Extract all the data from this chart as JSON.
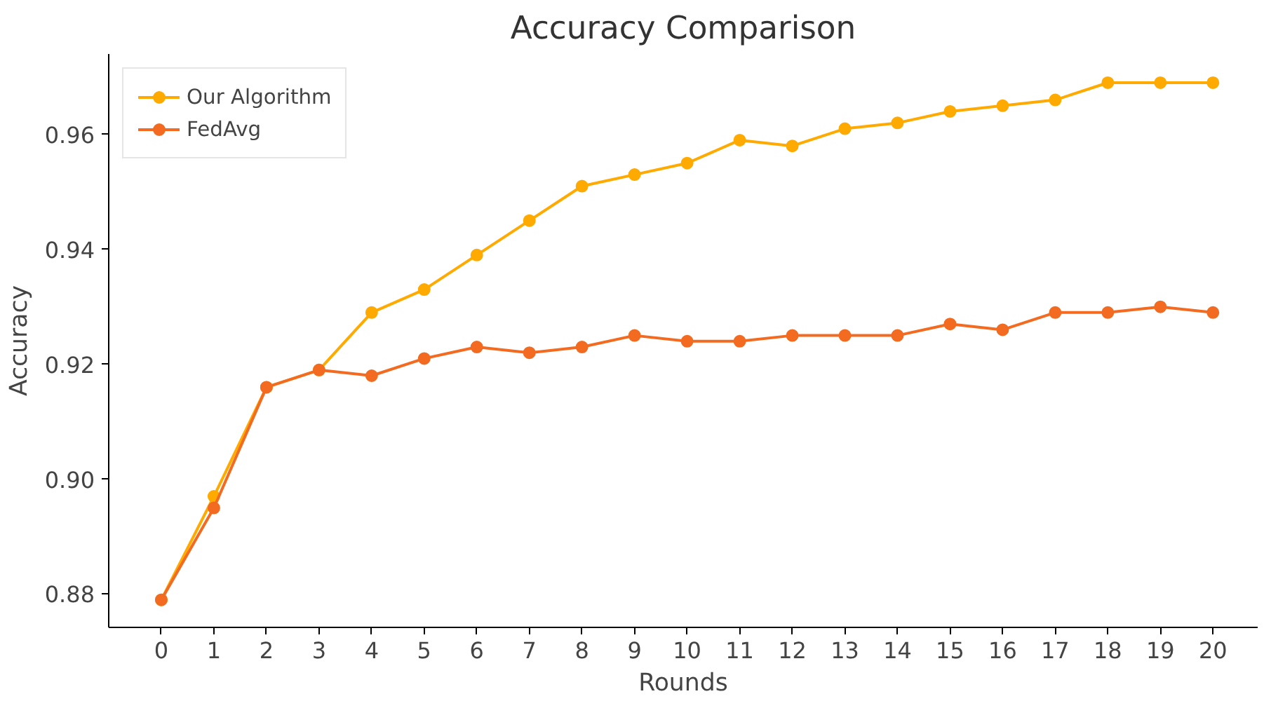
{
  "chart_data": {
    "type": "line",
    "title": "Accuracy Comparison",
    "xlabel": "Rounds",
    "ylabel": "Accuracy",
    "x": [
      0,
      1,
      2,
      3,
      4,
      5,
      6,
      7,
      8,
      9,
      10,
      11,
      12,
      13,
      14,
      15,
      16,
      17,
      18,
      19,
      20
    ],
    "series": [
      {
        "name": "Our Algorithm",
        "color": "#ffaa00",
        "values": [
          0.879,
          0.897,
          0.916,
          0.919,
          0.929,
          0.933,
          0.939,
          0.945,
          0.951,
          0.953,
          0.955,
          0.959,
          0.958,
          0.961,
          0.962,
          0.964,
          0.965,
          0.966,
          0.969,
          0.969,
          0.969
        ]
      },
      {
        "name": "FedAvg",
        "color": "#f26b21",
        "values": [
          0.879,
          0.895,
          0.916,
          0.919,
          0.918,
          0.921,
          0.923,
          0.922,
          0.923,
          0.925,
          0.924,
          0.924,
          0.925,
          0.925,
          0.925,
          0.927,
          0.926,
          0.929,
          0.929,
          0.93,
          0.929
        ]
      }
    ],
    "xlim": [
      -1,
      20.85
    ],
    "ylim": [
      0.8742,
      0.974
    ],
    "xticks": [
      0,
      1,
      2,
      3,
      4,
      5,
      6,
      7,
      8,
      9,
      10,
      11,
      12,
      13,
      14,
      15,
      16,
      17,
      18,
      19,
      20
    ],
    "yticks": [
      {
        "value": 0.88,
        "label": "0.88"
      },
      {
        "value": 0.9,
        "label": "0.90"
      },
      {
        "value": 0.92,
        "label": "0.92"
      },
      {
        "value": 0.94,
        "label": "0.94"
      },
      {
        "value": 0.96,
        "label": "0.96"
      }
    ],
    "marker": "circle",
    "line_style": "solid",
    "grid": false,
    "legend": "top left"
  }
}
